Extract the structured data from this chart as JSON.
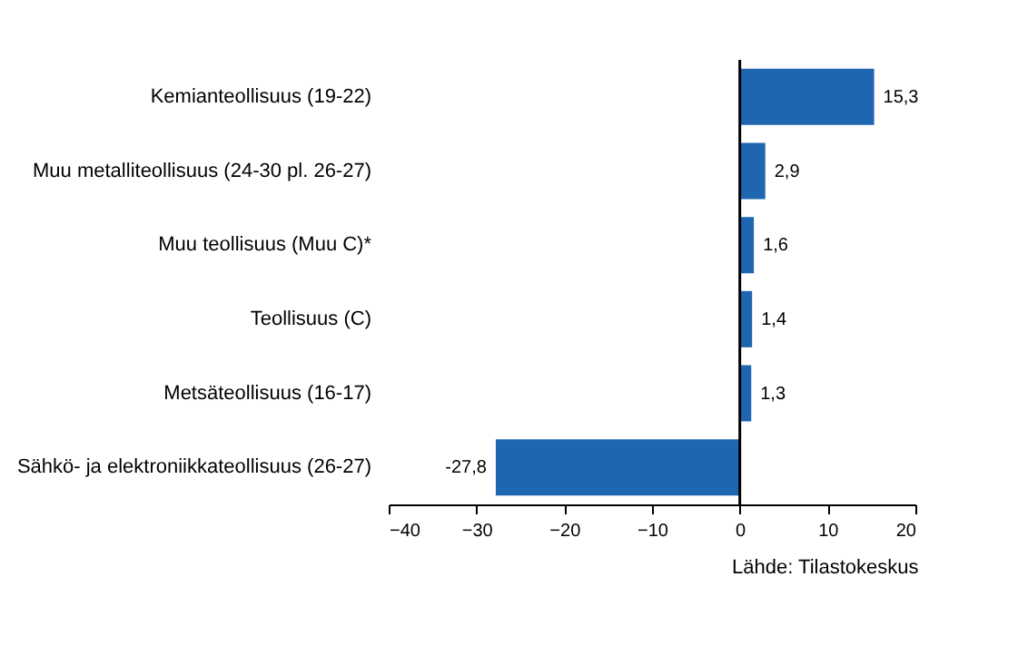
{
  "chart_data": {
    "type": "bar",
    "orientation": "horizontal",
    "categories": [
      "Kemianteollisuus (19-22)",
      "Muu metalliteollisuus (24-30  pl. 26-27)",
      "Muu teollisuus (Muu C)*",
      "Teollisuus (C)",
      "Metsäteollisuus (16-17)",
      "Sähkö- ja elektroniikkateollisuus  (26-27)"
    ],
    "values": [
      15.3,
      2.9,
      1.6,
      1.4,
      1.3,
      -27.8
    ],
    "value_labels": [
      "15,3",
      "2,9",
      "1,6",
      "1,4",
      "1,3",
      "-27,8"
    ],
    "color": "#1f66b0",
    "xlim": [
      -40,
      20
    ],
    "xticks": [
      -40,
      -30,
      -20,
      -10,
      0,
      10,
      20
    ],
    "ref_lines": [
      {
        "axis": "x",
        "value": 0,
        "color": "#000000"
      }
    ],
    "annotations": [
      "Lähde: Tilastokeskus"
    ]
  }
}
